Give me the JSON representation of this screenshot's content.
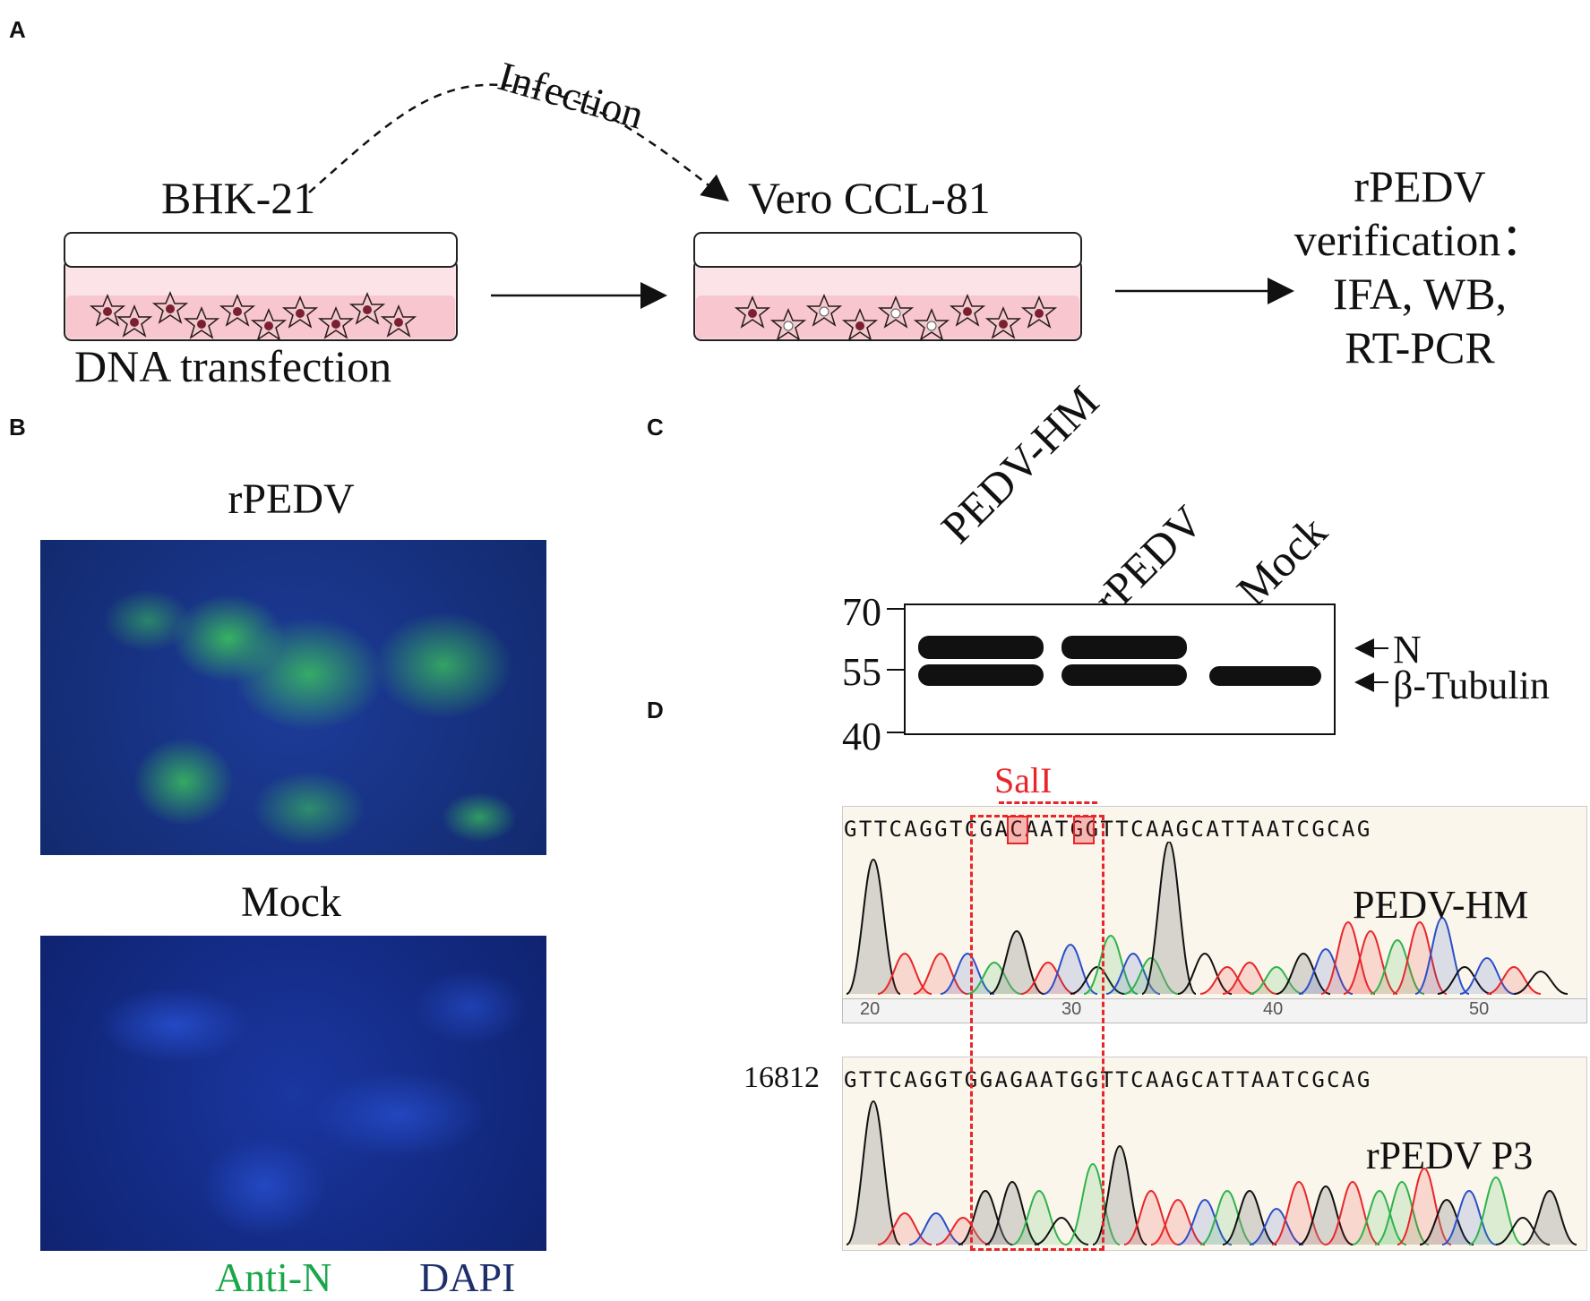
{
  "panels": {
    "a": "A",
    "b": "B",
    "c": "C",
    "d": "D"
  },
  "workflow": {
    "infection": "Infection",
    "dish1": "BHK-21",
    "dish1_sub": "DNA transfection",
    "dish2": "Vero CCL-81",
    "verification": [
      "rPEDV",
      "verification：",
      "IFA, WB,",
      "RT-PCR"
    ]
  },
  "ifa": {
    "top_title": "rPEDV",
    "bottom_title": "Mock",
    "legend_green": "Anti-N",
    "legend_blue": "DAPI",
    "colors": {
      "green": "#1aa64a",
      "blue": "#1f2f6b"
    }
  },
  "western": {
    "lanes": [
      "PEDV-HM",
      "rPEDV",
      "Mock"
    ],
    "mw_markers": [
      "70",
      "55",
      "40"
    ],
    "bands": [
      "N",
      "β-Tubulin"
    ]
  },
  "sequencing": {
    "site": "SalI",
    "seq_top": "GTTCAGGTCGACAATGGTTCAAGCATTAATCGCAG",
    "seq_bottom": "GTTCAGGTGGAGAATGGTTCAAGCATTAATCGCAG",
    "top_label": "PEDV-HM",
    "bottom_label": "rPEDV P3",
    "position": "16812",
    "ruler": [
      "20",
      "30",
      "40",
      "50"
    ],
    "colors": {
      "red": "#e8262a",
      "green": "#2fb34a",
      "blue": "#2b4fc9",
      "black": "#111111"
    }
  }
}
